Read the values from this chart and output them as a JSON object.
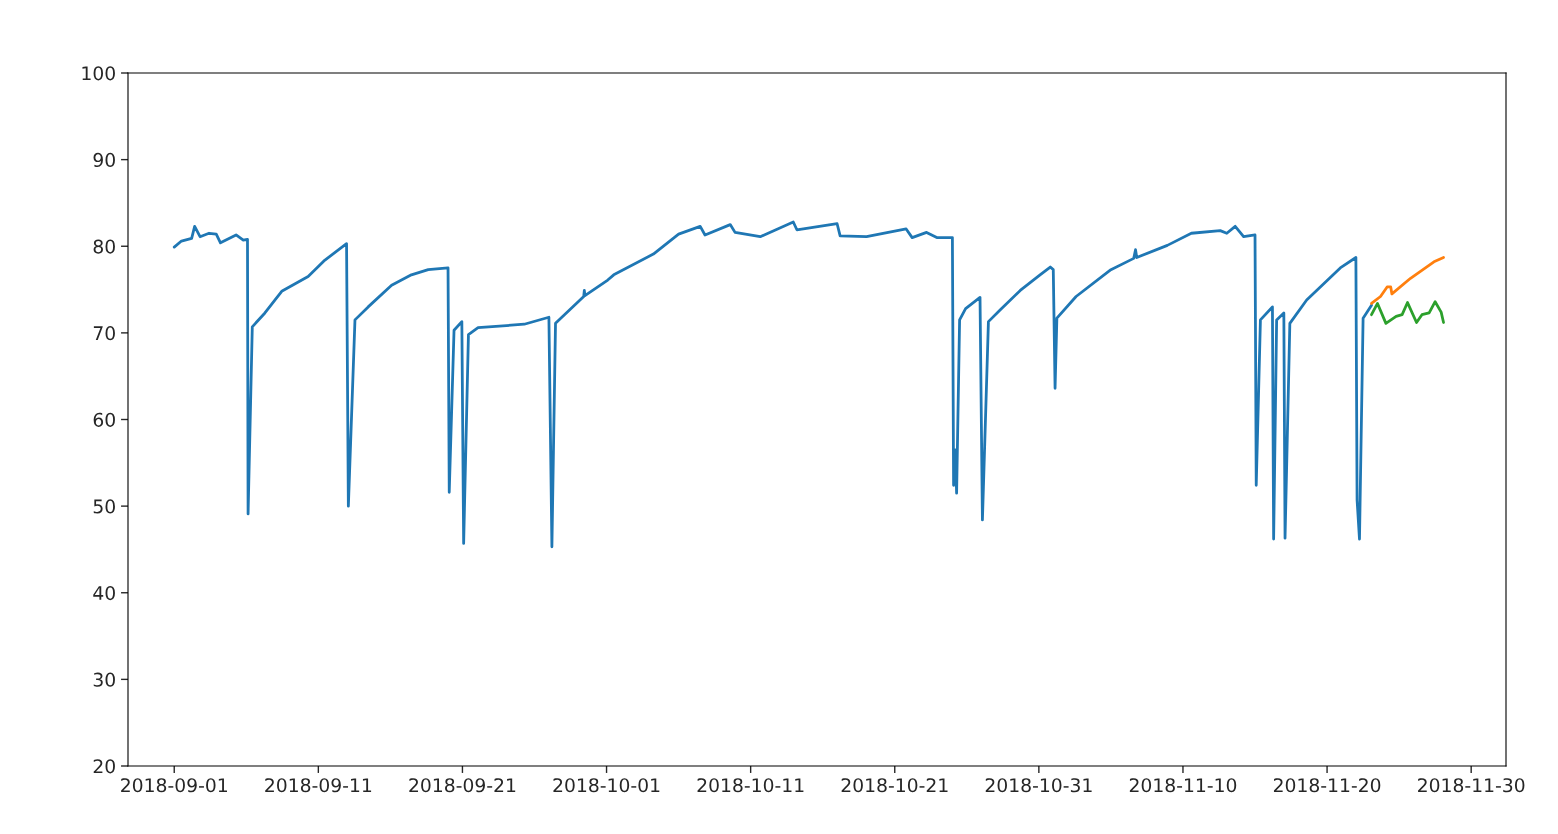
{
  "chart_data": {
    "type": "line",
    "xlim": [
      "2018-08-28T19:00",
      "2018-12-02T10:00"
    ],
    "xticks": [
      "2018-09-01",
      "2018-09-11",
      "2018-09-21",
      "2018-10-01",
      "2018-10-11",
      "2018-10-21",
      "2018-10-31",
      "2018-11-10",
      "2018-11-20",
      "2018-11-30"
    ],
    "ylim": [
      20,
      100
    ],
    "yticks": [
      20,
      30,
      40,
      50,
      60,
      70,
      80,
      90,
      100
    ],
    "series": [
      {
        "color": "#1f77b4",
        "x": [
          "2018-09-01T00:00",
          "2018-09-01T12:00",
          "2018-09-02T05:00",
          "2018-09-02T10:00",
          "2018-09-02T19:00",
          "2018-09-03T10:00",
          "2018-09-03T22:00",
          "2018-09-04T05:00",
          "2018-09-05T07:00",
          "2018-09-05T19:00",
          "2018-09-06T02:00",
          "2018-09-06T03:00",
          "2018-09-06T10:00",
          "2018-09-07T07:00",
          "2018-09-08T11:00",
          "2018-09-10T07:00",
          "2018-09-11T11:00",
          "2018-09-12T23:00",
          "2018-09-13T02:00",
          "2018-09-13T13:00",
          "2018-09-14T11:00",
          "2018-09-16T02:00",
          "2018-09-17T11:00",
          "2018-09-18T15:00",
          "2018-09-20T00:00",
          "2018-09-20T02:00",
          "2018-09-20T10:00",
          "2018-09-20T23:00",
          "2018-09-21T02:00",
          "2018-09-21T10:00",
          "2018-09-22T02:00",
          "2018-09-25T07:00",
          "2018-09-27T00:00",
          "2018-09-27T05:00",
          "2018-09-27T11:00",
          "2018-09-29T10:00",
          "2018-09-29T11:00",
          "2018-09-29T12:00",
          "2018-10-01T02:00",
          "2018-10-01T12:00",
          "2018-10-04T06:00",
          "2018-10-06T00:00",
          "2018-10-07T12:00",
          "2018-10-07T20:00",
          "2018-10-09T14:00",
          "2018-10-09T22:00",
          "2018-10-11T16:00",
          "2018-10-13T23:00",
          "2018-10-14T05:00",
          "2018-10-17T00:00",
          "2018-10-17T05:00",
          "2018-10-19T01:00",
          "2018-10-21T19:00",
          "2018-10-22T05:00",
          "2018-10-23T05:00",
          "2018-10-23T22:00",
          "2018-10-25T00:00",
          "2018-10-25T02:00",
          "2018-10-25T05:00",
          "2018-10-25T07:00",
          "2018-10-25T12:00",
          "2018-10-25T22:00",
          "2018-10-26T22:00",
          "2018-10-27T02:00",
          "2018-10-27T12:00",
          "2018-10-28T07:00",
          "2018-10-29T17:00",
          "2018-10-31T02:00",
          "2018-10-31T19:00",
          "2018-11-01T00:00",
          "2018-11-01T03:00",
          "2018-11-01T06:00",
          "2018-11-02T14:00",
          "2018-11-05T00:00",
          "2018-11-06T14:00",
          "2018-11-06T17:00",
          "2018-11-06T19:00",
          "2018-11-08T22:00",
          "2018-11-10T14:00",
          "2018-11-12T14:00",
          "2018-11-13T01:00",
          "2018-11-13T15:00",
          "2018-11-14T05:00",
          "2018-11-15T00:00",
          "2018-11-15T02:00",
          "2018-11-15T09:00",
          "2018-11-16T05:00",
          "2018-11-16T07:00",
          "2018-11-16T12:00",
          "2018-11-17T00:00",
          "2018-11-17T02:00",
          "2018-11-17T10:00",
          "2018-11-18T14:00",
          "2018-11-20T22:00",
          "2018-11-22T00:00",
          "2018-11-22T02:00",
          "2018-11-22T06:00",
          "2018-11-22T12:00",
          "2018-11-23T02:00"
        ],
        "values": [
          79.9,
          80.6,
          80.9,
          82.3,
          81.1,
          81.5,
          81.4,
          80.4,
          81.3,
          80.7,
          80.8,
          49.1,
          70.7,
          72.3,
          74.8,
          76.5,
          78.4,
          80.3,
          50.0,
          71.5,
          73.0,
          75.5,
          76.7,
          77.3,
          77.5,
          51.6,
          70.3,
          71.3,
          45.7,
          69.8,
          70.6,
          71.0,
          71.8,
          45.3,
          71.1,
          74.2,
          74.9,
          74.3,
          76.1,
          76.7,
          79.1,
          81.4,
          82.3,
          81.3,
          82.5,
          81.6,
          81.1,
          82.8,
          81.9,
          82.6,
          81.2,
          81.1,
          82.0,
          81.0,
          81.6,
          81.0,
          81.0,
          52.4,
          56.5,
          51.5,
          71.5,
          72.8,
          74.1,
          48.4,
          71.3,
          72.6,
          74.9,
          76.7,
          77.6,
          77.3,
          63.6,
          71.7,
          74.2,
          77.3,
          78.6,
          79.6,
          78.7,
          80.1,
          81.5,
          81.8,
          81.5,
          82.3,
          81.1,
          81.3,
          52.4,
          71.5,
          73.0,
          46.2,
          71.5,
          72.3,
          46.3,
          71.1,
          73.8,
          77.5,
          78.7,
          50.7,
          46.2,
          71.7,
          73.2
        ]
      },
      {
        "color": "#ff7f0e",
        "x": [
          "2018-11-23T02:00",
          "2018-11-23T17:00",
          "2018-11-24T04:00",
          "2018-11-24T10:00",
          "2018-11-24T12:00",
          "2018-11-25T19:00",
          "2018-11-27T10:00",
          "2018-11-28T02:00"
        ],
        "values": [
          73.4,
          74.2,
          75.3,
          75.3,
          74.5,
          76.3,
          78.2,
          78.7
        ]
      },
      {
        "color": "#2ca02c",
        "x": [
          "2018-11-23T02:00",
          "2018-11-23T12:00",
          "2018-11-24T02:00",
          "2018-11-24T19:00",
          "2018-11-25T05:00",
          "2018-11-25T14:00",
          "2018-11-26T05:00",
          "2018-11-26T14:00",
          "2018-11-27T02:00",
          "2018-11-27T12:00",
          "2018-11-27T22:00",
          "2018-11-28T02:00"
        ],
        "values": [
          72.1,
          73.4,
          71.1,
          71.9,
          72.1,
          73.5,
          71.2,
          72.1,
          72.3,
          73.6,
          72.4,
          71.2
        ]
      }
    ]
  }
}
